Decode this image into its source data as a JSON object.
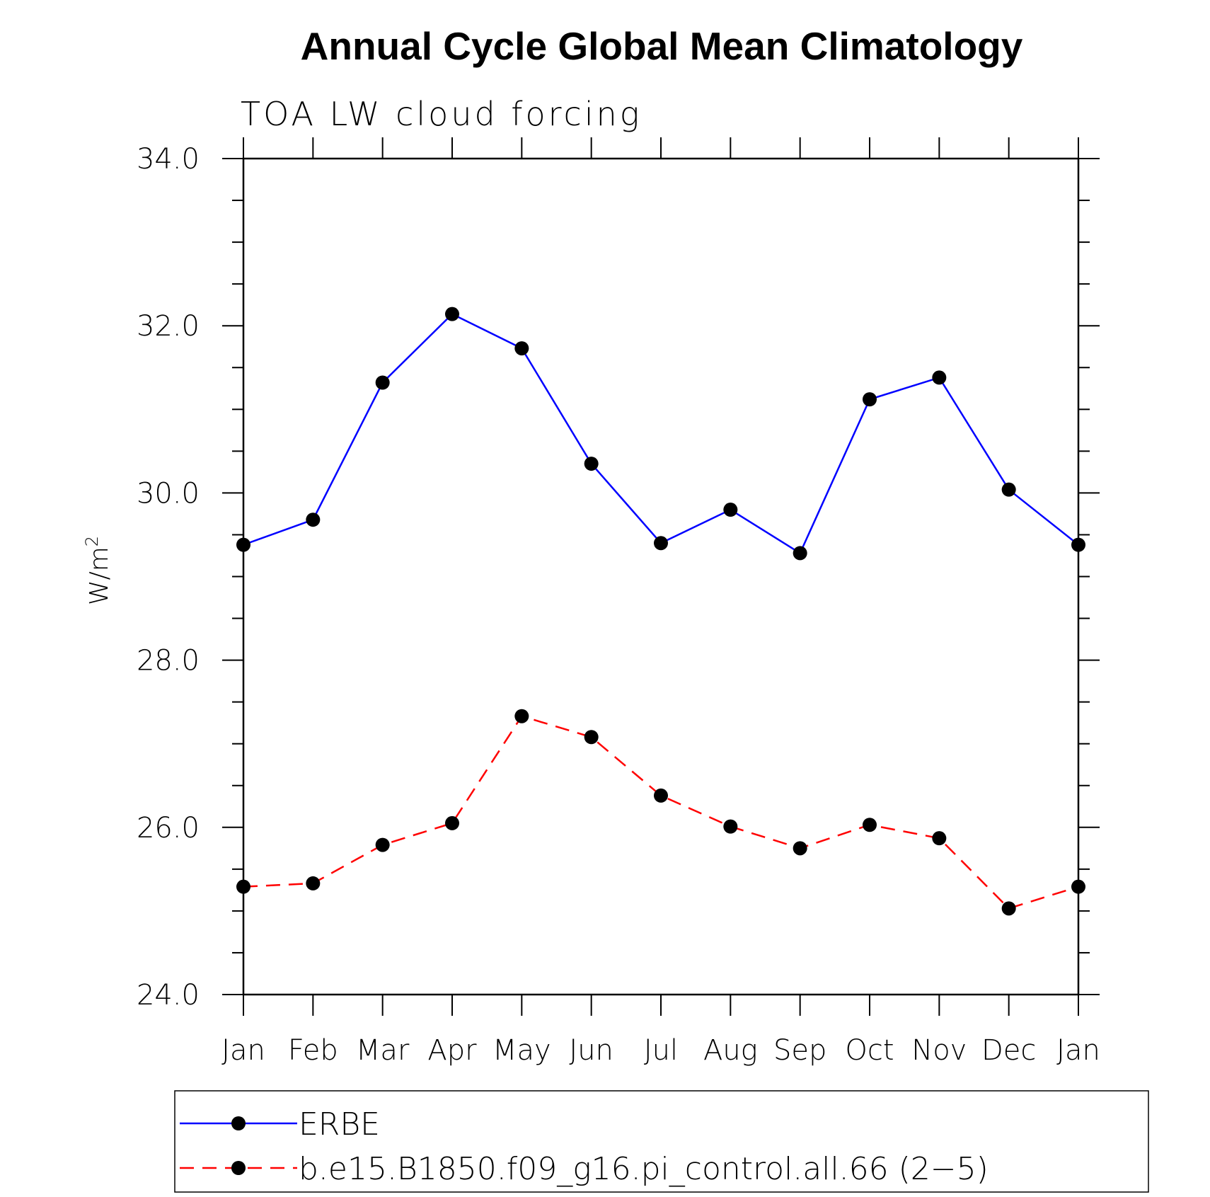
{
  "chart_data": {
    "type": "line",
    "title": "Annual Cycle Global Mean Climatology",
    "subtitle": "TOA LW cloud forcing",
    "xlabel": "",
    "ylabel_base": "W/m",
    "ylabel_sup": "2",
    "ylim": [
      24.0,
      34.0
    ],
    "y_major_ticks": [
      "24.0",
      "26.0",
      "28.0",
      "30.0",
      "32.0",
      "34.0"
    ],
    "categories": [
      "Jan",
      "Feb",
      "Mar",
      "Apr",
      "May",
      "Jun",
      "Jul",
      "Aug",
      "Sep",
      "Oct",
      "Nov",
      "Dec",
      "Jan"
    ],
    "grid": false,
    "legend_position": "bottom",
    "series": [
      {
        "name": "ERBE",
        "color": "#0000ff",
        "dash": "solid",
        "marker": "filled-circle",
        "values": [
          29.38,
          29.68,
          31.32,
          32.14,
          31.73,
          30.35,
          29.4,
          29.8,
          29.28,
          31.12,
          31.38,
          30.04,
          29.38
        ]
      },
      {
        "name": "b.e15.B1850.f09_g16.pi_control.all.66 (2−5)",
        "color": "#ff0000",
        "dash": "dashed",
        "marker": "filled-circle",
        "values": [
          25.29,
          25.33,
          25.79,
          26.05,
          27.33,
          27.08,
          26.38,
          26.01,
          25.75,
          26.03,
          25.87,
          25.03,
          25.29
        ]
      }
    ]
  }
}
